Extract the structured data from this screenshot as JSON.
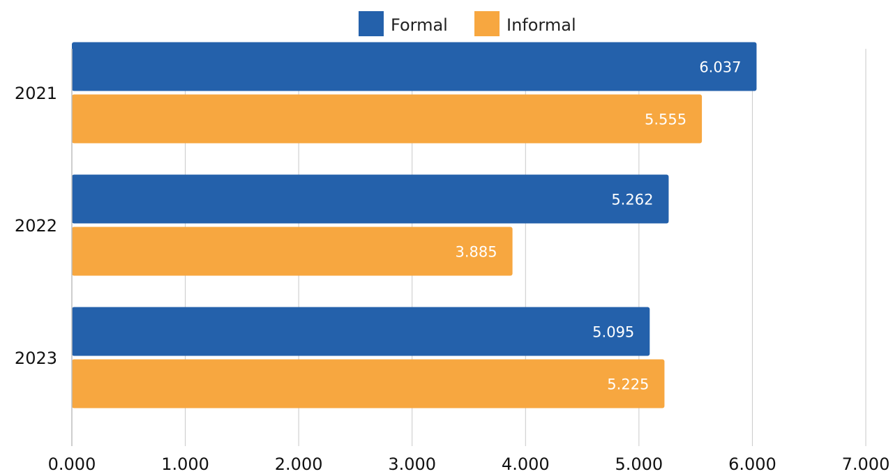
{
  "chart_data": {
    "type": "bar",
    "orientation": "horizontal",
    "categories": [
      "2021",
      "2022",
      "2023"
    ],
    "series": [
      {
        "name": "Formal",
        "color": "#2461AB",
        "values": [
          6.037,
          5.262,
          5.095
        ]
      },
      {
        "name": "Informal",
        "color": "#F7A740",
        "values": [
          5.555,
          3.885,
          5.225
        ]
      }
    ],
    "data_labels": [
      [
        "6.037",
        "5.262",
        "5.095"
      ],
      [
        "5.555",
        "3.885",
        "5.225"
      ]
    ],
    "x_ticks": [
      "0.000",
      "1.000",
      "2.000",
      "3.000",
      "4.000",
      "5.000",
      "6.000",
      "7.000"
    ],
    "xlim": [
      0,
      7
    ],
    "title": "",
    "xlabel": "",
    "ylabel": "",
    "grid": "vertical",
    "legend": "top-center"
  }
}
